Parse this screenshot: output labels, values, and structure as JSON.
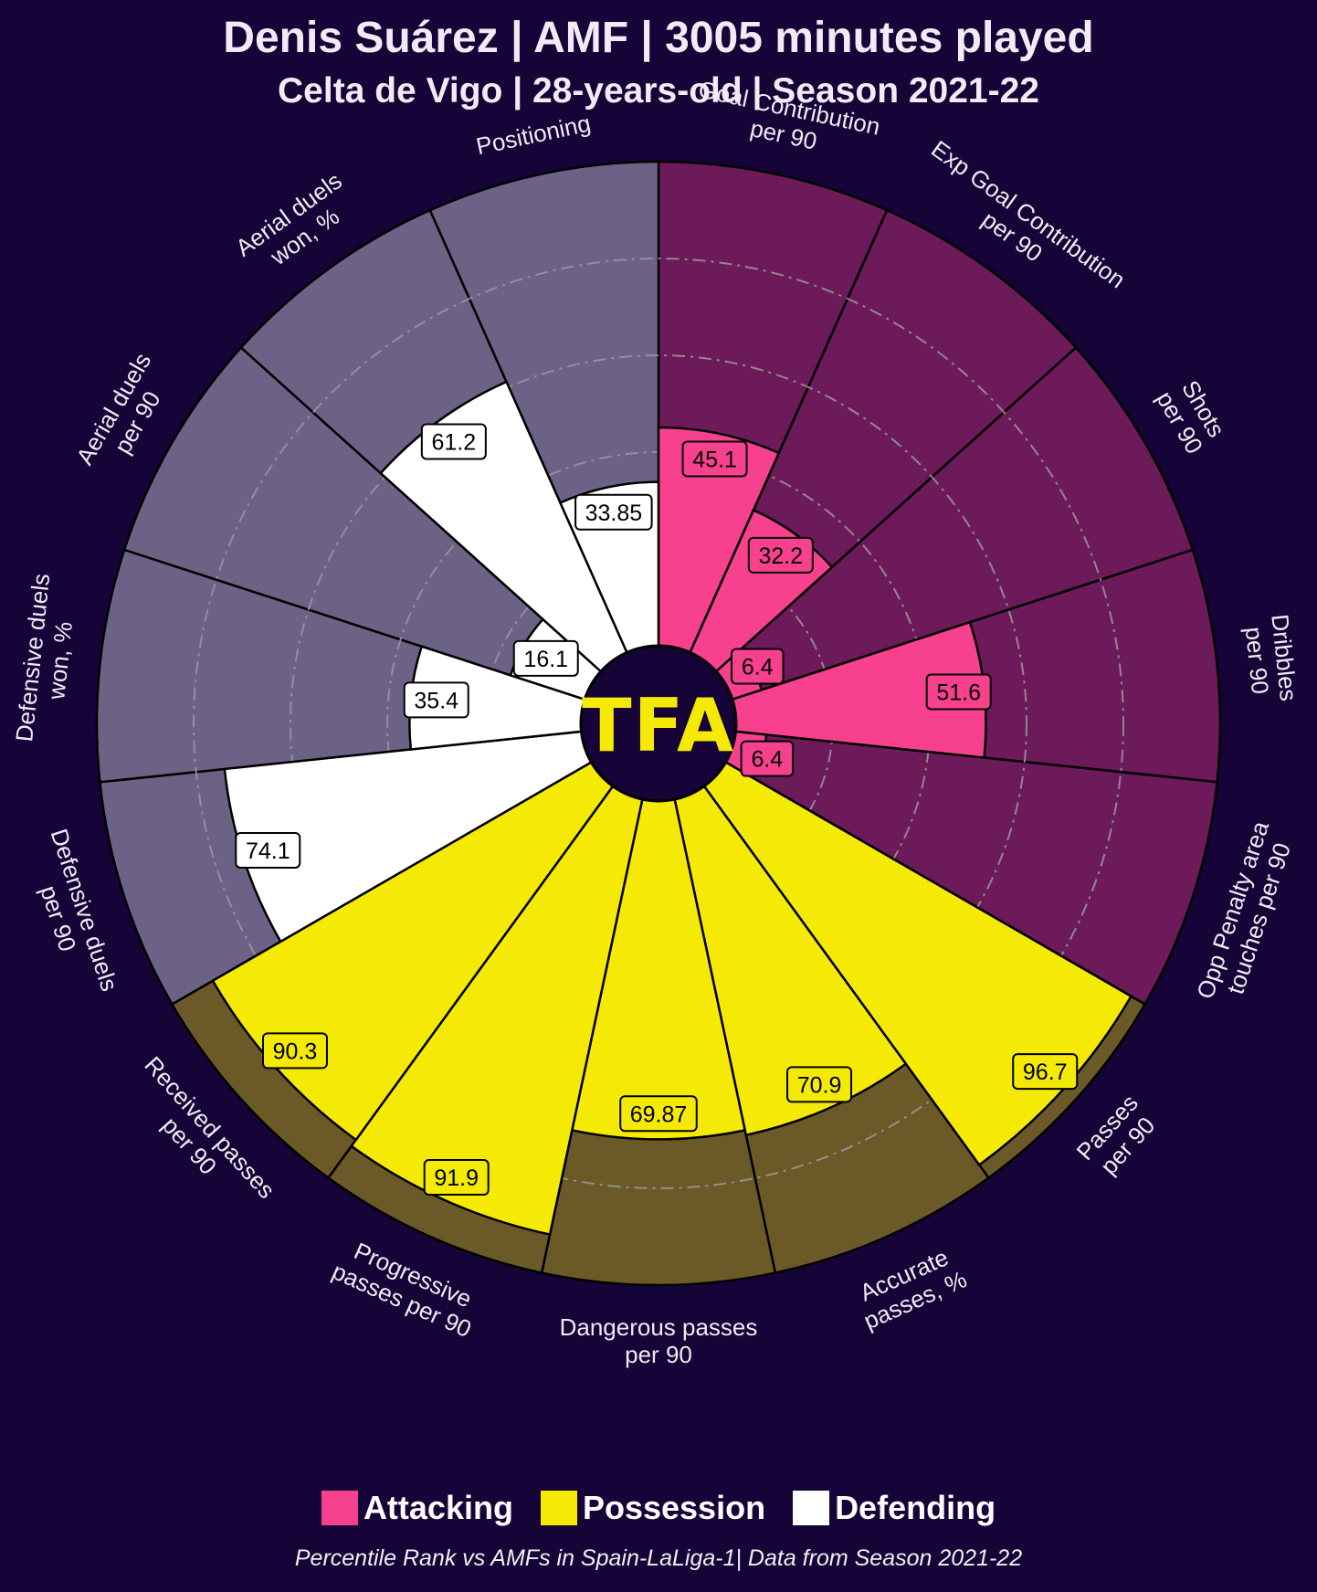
{
  "header": {
    "title": "Denis Suárez | AMF | 3005 minutes played",
    "subtitle": "Celta de Vigo | 28-years-old | Season 2021-22"
  },
  "center_logo": {
    "text": "TFA"
  },
  "legend": [
    {
      "label": "Attacking",
      "color": "#f7418f"
    },
    {
      "label": "Possession",
      "color": "#f5ea06"
    },
    {
      "label": "Defending",
      "color": "#ffffff"
    }
  ],
  "footer": "Percentile Rank vs AMFs in Spain-LaLiga-1| Data from Season 2021-22",
  "chart_data": {
    "type": "pizza",
    "scale": [
      0,
      100
    ],
    "categories": [
      {
        "name": "Attacking",
        "color": "#f7418f",
        "bg": "#6d1a5a",
        "value_text_color": "#000000"
      },
      {
        "name": "Possession",
        "color": "#f5ea06",
        "bg": "#6b5a28",
        "value_text_color": "#000000"
      },
      {
        "name": "Defending",
        "color": "#ffffff",
        "bg": "#6c6286",
        "value_text_color": "#000000"
      }
    ],
    "params": [
      {
        "label": "Goal Contribution\nper 90",
        "value": 45.1,
        "display": "45.1",
        "category": "Attacking"
      },
      {
        "label": "Exp Goal Contribution\nper 90",
        "value": 32.2,
        "display": "32.2",
        "category": "Attacking"
      },
      {
        "label": "Shots\nper 90",
        "value": 6.4,
        "display": "6.4",
        "category": "Attacking"
      },
      {
        "label": "Dribbles\nper 90",
        "value": 51.6,
        "display": "51.6",
        "category": "Attacking"
      },
      {
        "label": "Opp Penalty area\ntouches per 90",
        "value": 6.4,
        "display": "6.4",
        "category": "Attacking"
      },
      {
        "label": "Passes\nper 90",
        "value": 96.7,
        "display": "96.7",
        "category": "Possession"
      },
      {
        "label": "Accurate\npasses, %",
        "value": 70.9,
        "display": "70.9",
        "category": "Possession"
      },
      {
        "label": "Dangerous passes\nper 90",
        "value": 69.87,
        "display": "69.87",
        "category": "Possession"
      },
      {
        "label": "Progressive\npasses per 90",
        "value": 91.9,
        "display": "91.9",
        "category": "Possession"
      },
      {
        "label": "Received passes\nper 90",
        "value": 90.3,
        "display": "90.3",
        "category": "Possession"
      },
      {
        "label": "Defensive duels\nper 90",
        "value": 74.1,
        "display": "74.1",
        "category": "Defending"
      },
      {
        "label": "Defensive duels\nwon, %",
        "value": 35.4,
        "display": "35.4",
        "category": "Defending"
      },
      {
        "label": "Aerial duels\nper 90",
        "value": 16.1,
        "display": "16.1",
        "category": "Defending"
      },
      {
        "label": "Aerial duels\nwon, %",
        "value": 61.2,
        "display": "61.2",
        "category": "Defending"
      },
      {
        "label": "Positioning",
        "value": 33.85,
        "display": "33.85",
        "category": "Defending"
      }
    ],
    "gridlines": [
      20,
      40,
      60,
      80
    ],
    "legend_placement": "bottom-center"
  }
}
